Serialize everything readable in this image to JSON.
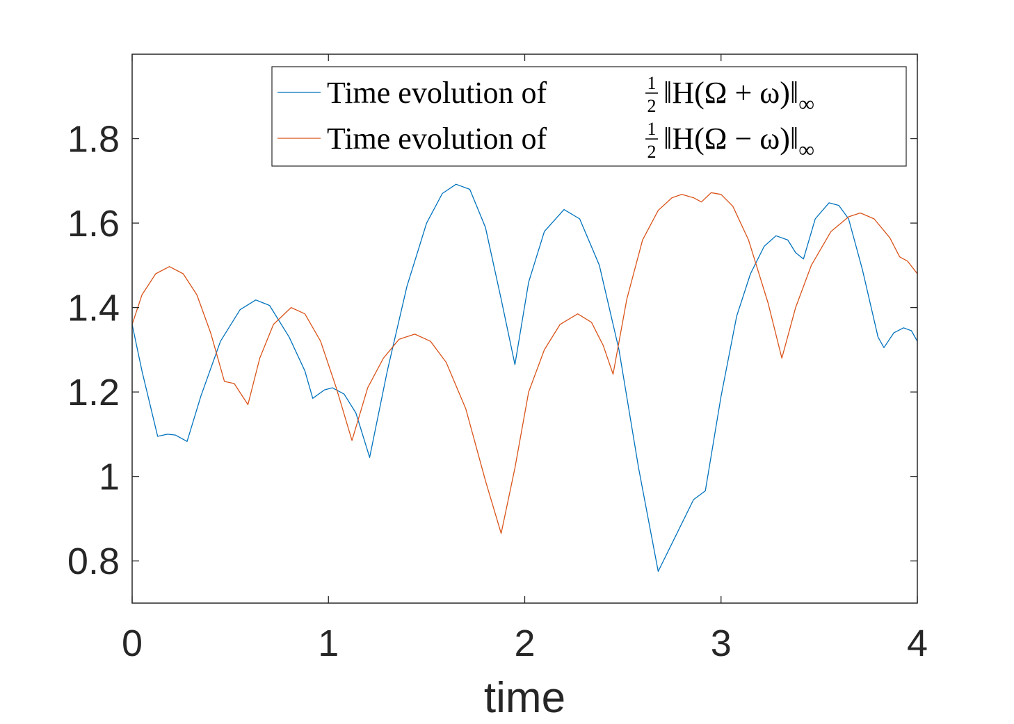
{
  "chart_data": {
    "type": "line",
    "xlabel": "time",
    "ylabel": "",
    "xlim": [
      0,
      4
    ],
    "ylim": [
      0.7,
      2.0
    ],
    "xticks": [
      0,
      1,
      2,
      3,
      4
    ],
    "xtick_labels": [
      "0",
      "1",
      "2",
      "3",
      "4"
    ],
    "yticks": [
      0.8,
      1.0,
      1.2,
      1.4,
      1.6,
      1.8
    ],
    "ytick_labels": [
      "0.8",
      "1",
      "1.2",
      "1.4",
      "1.6",
      "1.8"
    ],
    "grid": false,
    "legend_position": "top-right",
    "series": [
      {
        "name": "Time evolution of ½‖H(Ω+ω)‖∞",
        "legend_prefix": "Time evolution of",
        "legend_math": "‖H(Ω + ω)‖",
        "legend_sub": "∞",
        "frac_num": "1",
        "frac_den": "2",
        "color": "#0072BD",
        "points": [
          [
            0.0,
            1.36
          ],
          [
            0.05,
            1.25
          ],
          [
            0.13,
            1.095
          ],
          [
            0.18,
            1.1
          ],
          [
            0.22,
            1.098
          ],
          [
            0.28,
            1.083
          ],
          [
            0.35,
            1.19
          ],
          [
            0.45,
            1.32
          ],
          [
            0.55,
            1.395
          ],
          [
            0.63,
            1.418
          ],
          [
            0.7,
            1.405
          ],
          [
            0.8,
            1.33
          ],
          [
            0.88,
            1.25
          ],
          [
            0.92,
            1.185
          ],
          [
            0.98,
            1.205
          ],
          [
            1.02,
            1.21
          ],
          [
            1.08,
            1.195
          ],
          [
            1.14,
            1.15
          ],
          [
            1.21,
            1.045
          ],
          [
            1.3,
            1.25
          ],
          [
            1.4,
            1.45
          ],
          [
            1.5,
            1.6
          ],
          [
            1.58,
            1.67
          ],
          [
            1.65,
            1.692
          ],
          [
            1.72,
            1.68
          ],
          [
            1.8,
            1.59
          ],
          [
            1.88,
            1.42
          ],
          [
            1.95,
            1.265
          ],
          [
            2.02,
            1.46
          ],
          [
            2.1,
            1.58
          ],
          [
            2.2,
            1.632
          ],
          [
            2.28,
            1.61
          ],
          [
            2.38,
            1.5
          ],
          [
            2.48,
            1.3
          ],
          [
            2.58,
            1.02
          ],
          [
            2.68,
            0.775
          ],
          [
            2.77,
            0.86
          ],
          [
            2.86,
            0.945
          ],
          [
            2.92,
            0.966
          ],
          [
            3.0,
            1.19
          ],
          [
            3.08,
            1.38
          ],
          [
            3.15,
            1.48
          ],
          [
            3.22,
            1.545
          ],
          [
            3.28,
            1.57
          ],
          [
            3.34,
            1.56
          ],
          [
            3.38,
            1.53
          ],
          [
            3.42,
            1.515
          ],
          [
            3.48,
            1.61
          ],
          [
            3.55,
            1.648
          ],
          [
            3.6,
            1.642
          ],
          [
            3.65,
            1.61
          ],
          [
            3.72,
            1.49
          ],
          [
            3.8,
            1.33
          ],
          [
            3.83,
            1.305
          ],
          [
            3.88,
            1.34
          ],
          [
            3.93,
            1.352
          ],
          [
            3.97,
            1.345
          ],
          [
            4.0,
            1.32
          ]
        ]
      },
      {
        "name": "Time evolution of ½‖H(Ω−ω)‖∞",
        "legend_prefix": "Time evolution of",
        "legend_math": "‖H(Ω − ω)‖",
        "legend_sub": "∞",
        "frac_num": "1",
        "frac_den": "2",
        "color": "#D95319",
        "points": [
          [
            0.0,
            1.36
          ],
          [
            0.05,
            1.43
          ],
          [
            0.12,
            1.48
          ],
          [
            0.19,
            1.497
          ],
          [
            0.26,
            1.48
          ],
          [
            0.33,
            1.43
          ],
          [
            0.4,
            1.34
          ],
          [
            0.47,
            1.225
          ],
          [
            0.52,
            1.22
          ],
          [
            0.59,
            1.17
          ],
          [
            0.65,
            1.28
          ],
          [
            0.72,
            1.36
          ],
          [
            0.81,
            1.4
          ],
          [
            0.88,
            1.385
          ],
          [
            0.96,
            1.32
          ],
          [
            1.04,
            1.21
          ],
          [
            1.12,
            1.085
          ],
          [
            1.2,
            1.21
          ],
          [
            1.28,
            1.28
          ],
          [
            1.36,
            1.325
          ],
          [
            1.44,
            1.337
          ],
          [
            1.52,
            1.32
          ],
          [
            1.6,
            1.27
          ],
          [
            1.7,
            1.16
          ],
          [
            1.8,
            0.99
          ],
          [
            1.88,
            0.865
          ],
          [
            1.95,
            1.02
          ],
          [
            2.02,
            1.2
          ],
          [
            2.1,
            1.3
          ],
          [
            2.18,
            1.36
          ],
          [
            2.27,
            1.385
          ],
          [
            2.34,
            1.365
          ],
          [
            2.4,
            1.31
          ],
          [
            2.45,
            1.242
          ],
          [
            2.52,
            1.42
          ],
          [
            2.6,
            1.56
          ],
          [
            2.68,
            1.63
          ],
          [
            2.75,
            1.66
          ],
          [
            2.8,
            1.668
          ],
          [
            2.86,
            1.66
          ],
          [
            2.9,
            1.65
          ],
          [
            2.95,
            1.672
          ],
          [
            3.0,
            1.668
          ],
          [
            3.06,
            1.64
          ],
          [
            3.14,
            1.56
          ],
          [
            3.24,
            1.41
          ],
          [
            3.31,
            1.28
          ],
          [
            3.38,
            1.4
          ],
          [
            3.46,
            1.5
          ],
          [
            3.56,
            1.58
          ],
          [
            3.65,
            1.615
          ],
          [
            3.71,
            1.624
          ],
          [
            3.78,
            1.61
          ],
          [
            3.86,
            1.565
          ],
          [
            3.91,
            1.52
          ],
          [
            3.95,
            1.51
          ],
          [
            4.0,
            1.48
          ]
        ]
      }
    ]
  }
}
